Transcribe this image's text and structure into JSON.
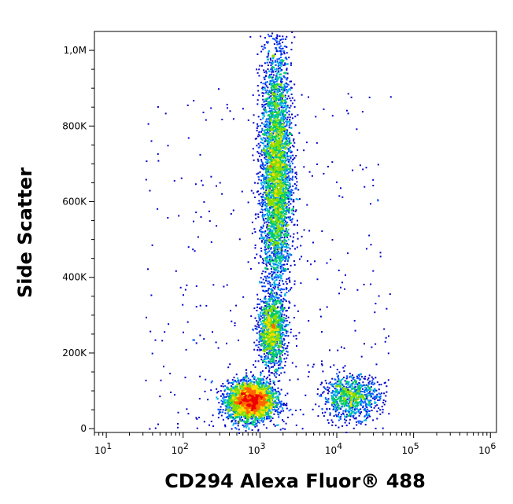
{
  "chart_data": {
    "type": "scatter",
    "title": "",
    "xlabel": "CD294 Alexa Fluor® 488",
    "ylabel": "Side Scatter",
    "x_scale": "log",
    "xlim": [
      7,
      1200000
    ],
    "ylim": [
      -10000,
      1050000
    ],
    "x_ticks": [
      {
        "value": 10,
        "base": "10",
        "exp": "1"
      },
      {
        "value": 100,
        "base": "10",
        "exp": "2"
      },
      {
        "value": 1000,
        "base": "10",
        "exp": "3"
      },
      {
        "value": 10000,
        "base": "10",
        "exp": "4"
      },
      {
        "value": 100000,
        "base": "10",
        "exp": "5"
      },
      {
        "value": 1000000,
        "base": "10",
        "exp": "6"
      }
    ],
    "y_ticks": [
      {
        "value": 0,
        "label": "0"
      },
      {
        "value": 200000,
        "label": "200K"
      },
      {
        "value": 400000,
        "label": "400K"
      },
      {
        "value": 600000,
        "label": "600K"
      },
      {
        "value": 800000,
        "label": "800K"
      },
      {
        "value": 1000000,
        "label": "1,0M"
      }
    ],
    "density_colormap": [
      "#0000cc",
      "#0055ff",
      "#00b4e6",
      "#00cc66",
      "#88dd00",
      "#ffdd00",
      "#ff6600",
      "#ee0000"
    ],
    "populations": [
      {
        "x_median": 750,
        "y_median": 75000,
        "x_log_sd": 0.15,
        "y_sd": 25000,
        "count": 3500
      },
      {
        "x_median": 1400,
        "y_median": 260000,
        "x_log_sd": 0.09,
        "y_sd": 45000,
        "count": 1200
      },
      {
        "x_median": 1600,
        "y_median": 680000,
        "x_log_sd": 0.1,
        "y_sd": 170000,
        "count": 4000
      },
      {
        "x_median": 15000,
        "y_median": 85000,
        "x_log_sd": 0.18,
        "y_sd": 28000,
        "count": 900
      }
    ],
    "grid": false,
    "legend": "none"
  }
}
